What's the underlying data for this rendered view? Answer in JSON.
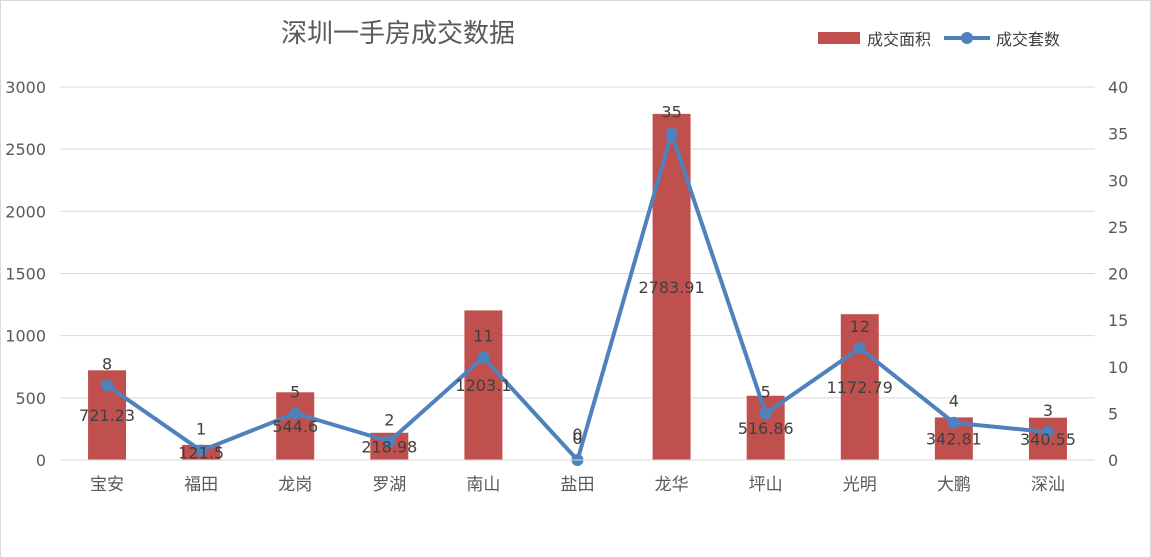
{
  "chart_data": {
    "type": "bar",
    "title": "深圳一手房成交数据",
    "categories": [
      "宝安",
      "福田",
      "龙岗",
      "罗湖",
      "南山",
      "盐田",
      "龙华",
      "坪山",
      "光明",
      "大鹏",
      "深汕"
    ],
    "series": [
      {
        "name": "成交面积",
        "type": "bar",
        "axis": "left",
        "color": "#C0504D",
        "values": [
          721.23,
          121.5,
          544.6,
          218.98,
          1203.1,
          0,
          2783.91,
          516.86,
          1172.79,
          342.81,
          340.55
        ],
        "labels": [
          "721.23",
          "121.5",
          "544.6",
          "218.98",
          "1203.1",
          "0",
          "2783.91",
          "516.86",
          "1172.79",
          "342.81",
          "340.55"
        ]
      },
      {
        "name": "成交套数",
        "type": "line",
        "axis": "right",
        "color": "#4F81BD",
        "values": [
          8,
          1,
          5,
          2,
          11,
          0,
          35,
          5,
          12,
          4,
          3
        ],
        "labels": [
          "8",
          "1",
          "5",
          "2",
          "11",
          "0",
          "35",
          "5",
          "12",
          "4",
          "3"
        ]
      }
    ],
    "y_left": {
      "min": 0,
      "max": 3000,
      "ticks": [
        "0",
        "500",
        "1000",
        "1500",
        "2000",
        "2500",
        "3000"
      ]
    },
    "y_right": {
      "min": 0,
      "max": 40,
      "ticks": [
        "0",
        "5",
        "10",
        "15",
        "20",
        "25",
        "30",
        "35",
        "40"
      ]
    },
    "grid": true,
    "legend": "top-right"
  }
}
